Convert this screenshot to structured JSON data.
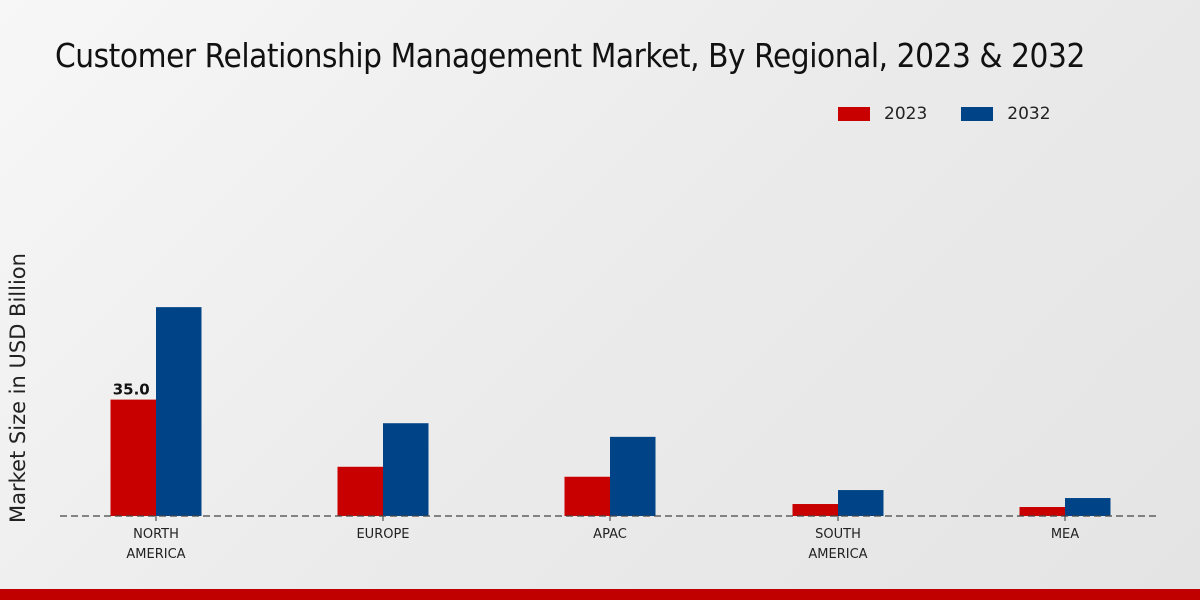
{
  "chart_data": {
    "type": "bar",
    "title": "Customer Relationship Management Market, By Regional, 2023 & 2032",
    "xlabel": "",
    "ylabel": "Market Size in USD Billion",
    "categories": [
      "NORTH AMERICA",
      "EUROPE",
      "APAC",
      "SOUTH AMERICA",
      "MEA"
    ],
    "category_lines": [
      [
        "NORTH",
        "AMERICA"
      ],
      [
        "EUROPE"
      ],
      [
        "APAC"
      ],
      [
        "SOUTH",
        "AMERICA"
      ],
      [
        "MEA"
      ]
    ],
    "series": [
      {
        "name": "2023",
        "color": "#c80000",
        "values": [
          35.0,
          14.8,
          11.8,
          3.6,
          2.7
        ]
      },
      {
        "name": "2032",
        "color": "#004487",
        "values": [
          62.8,
          27.9,
          23.8,
          7.8,
          5.4
        ]
      }
    ],
    "data_labels": [
      {
        "series": "2023",
        "category": "NORTH AMERICA",
        "text": "35.0"
      }
    ],
    "ylim": [
      0,
      70
    ],
    "grid": false,
    "legend_position": "top-right"
  }
}
